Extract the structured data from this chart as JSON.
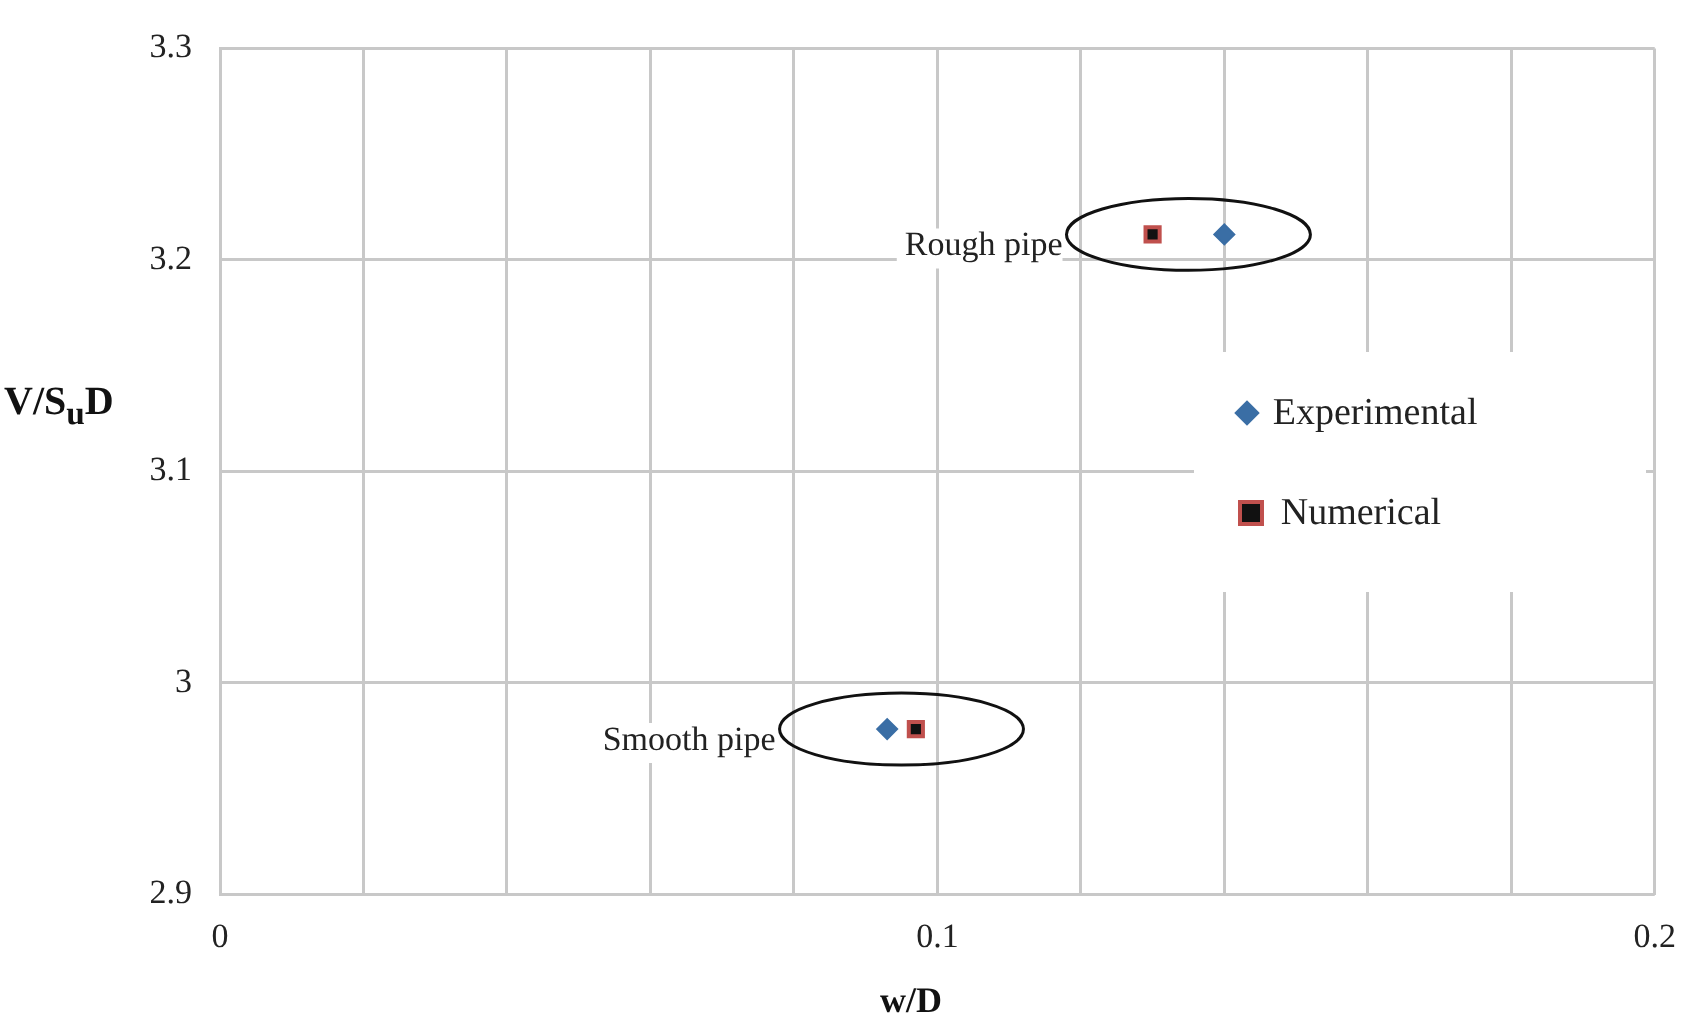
{
  "chart_data": {
    "type": "scatter",
    "xlabel": "w/D",
    "ylabel": "V/S$_{u}$D",
    "xlim": [
      0,
      0.2
    ],
    "xticks": [
      0,
      {
        "value": 0.02,
        "label": null
      },
      {
        "value": 0.04,
        "label": null
      },
      {
        "value": 0.06,
        "label": null
      },
      {
        "value": 0.08,
        "label": null
      },
      0.1,
      {
        "value": 0.12,
        "label": null
      },
      {
        "value": 0.14,
        "label": null
      },
      {
        "value": 0.16,
        "label": null
      },
      {
        "value": 0.18,
        "label": null
      },
      0.2
    ],
    "ylim": [
      2.9,
      3.3
    ],
    "yticks": [
      2.9,
      3,
      3.1,
      3.2,
      3.3
    ],
    "grid": true,
    "legend": "right",
    "series": [
      {
        "name": "Experimental",
        "color": "#3a6ea5",
        "marker": "diamond",
        "x": [
          0.093,
          0.14
        ],
        "values": [
          2.978,
          3.212
        ]
      },
      {
        "name": "Numerical",
        "color": "#c0504d",
        "marker": "square",
        "x": [
          0.097,
          0.13
        ],
        "values": [
          2.978,
          3.212
        ]
      }
    ],
    "annotations": [
      "Smooth pipe",
      "Rough pipe"
    ]
  }
}
